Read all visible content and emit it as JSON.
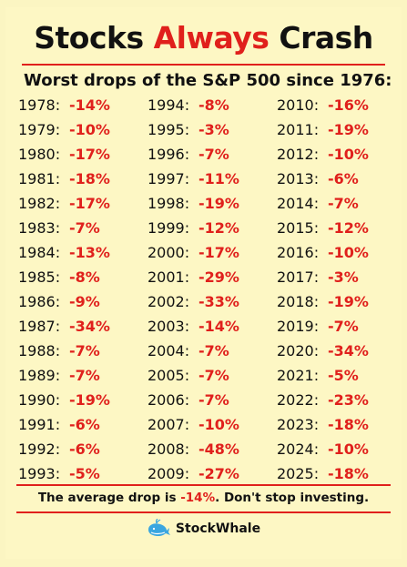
{
  "header": {
    "title_part1": "Stocks ",
    "title_accent": "Always",
    "title_part2": " Crash",
    "subtitle": "Worst drops of the S&P 500 since 1976:"
  },
  "columns": [
    [
      {
        "year": "1978:",
        "drop": "-14%"
      },
      {
        "year": "1979:",
        "drop": "-10%"
      },
      {
        "year": "1980:",
        "drop": "-17%"
      },
      {
        "year": "1981:",
        "drop": "-18%"
      },
      {
        "year": "1982:",
        "drop": "-17%"
      },
      {
        "year": "1983:",
        "drop": "-7%"
      },
      {
        "year": "1984:",
        "drop": "-13%"
      },
      {
        "year": "1985:",
        "drop": "-8%"
      },
      {
        "year": "1986:",
        "drop": "-9%"
      },
      {
        "year": "1987:",
        "drop": "-34%"
      },
      {
        "year": "1988:",
        "drop": "-7%"
      },
      {
        "year": "1989:",
        "drop": "-7%"
      },
      {
        "year": "1990:",
        "drop": "-19%"
      },
      {
        "year": "1991:",
        "drop": "-6%"
      },
      {
        "year": "1992:",
        "drop": "-6%"
      },
      {
        "year": "1993:",
        "drop": "-5%"
      }
    ],
    [
      {
        "year": "1994:",
        "drop": "-8%"
      },
      {
        "year": "1995:",
        "drop": "-3%"
      },
      {
        "year": "1996:",
        "drop": "-7%"
      },
      {
        "year": "1997:",
        "drop": "-11%"
      },
      {
        "year": "1998:",
        "drop": "-19%"
      },
      {
        "year": "1999:",
        "drop": "-12%"
      },
      {
        "year": "2000:",
        "drop": "-17%"
      },
      {
        "year": "2001:",
        "drop": "-29%"
      },
      {
        "year": "2002:",
        "drop": "-33%"
      },
      {
        "year": "2003:",
        "drop": "-14%"
      },
      {
        "year": "2004:",
        "drop": "-7%"
      },
      {
        "year": "2005:",
        "drop": "-7%"
      },
      {
        "year": "2006:",
        "drop": "-7%"
      },
      {
        "year": "2007:",
        "drop": "-10%"
      },
      {
        "year": "2008:",
        "drop": "-48%"
      },
      {
        "year": "2009:",
        "drop": "-27%"
      }
    ],
    [
      {
        "year": "2010:",
        "drop": "-16%"
      },
      {
        "year": "2011:",
        "drop": "-19%"
      },
      {
        "year": "2012:",
        "drop": "-10%"
      },
      {
        "year": "2013:",
        "drop": "-6%"
      },
      {
        "year": "2014:",
        "drop": "-7%"
      },
      {
        "year": "2015:",
        "drop": "-12%"
      },
      {
        "year": "2016:",
        "drop": "-10%"
      },
      {
        "year": "2017:",
        "drop": "-3%"
      },
      {
        "year": "2018:",
        "drop": "-19%"
      },
      {
        "year": "2019:",
        "drop": "-7%"
      },
      {
        "year": "2020:",
        "drop": "-34%"
      },
      {
        "year": "2021:",
        "drop": "-5%"
      },
      {
        "year": "2022:",
        "drop": "-23%"
      },
      {
        "year": "2023:",
        "drop": "-18%"
      },
      {
        "year": "2024:",
        "drop": "-10%"
      },
      {
        "year": "2025:",
        "drop": "-18%"
      }
    ]
  ],
  "footer": {
    "text_before": "The average drop is ",
    "average": "-14%",
    "text_after": ". Don't stop investing."
  },
  "brand": {
    "name": "StockWhale",
    "icon": "whale-icon"
  },
  "colors": {
    "accent": "#e0201c",
    "background": "#fdf7c4",
    "whale": "#3aa6e0"
  }
}
